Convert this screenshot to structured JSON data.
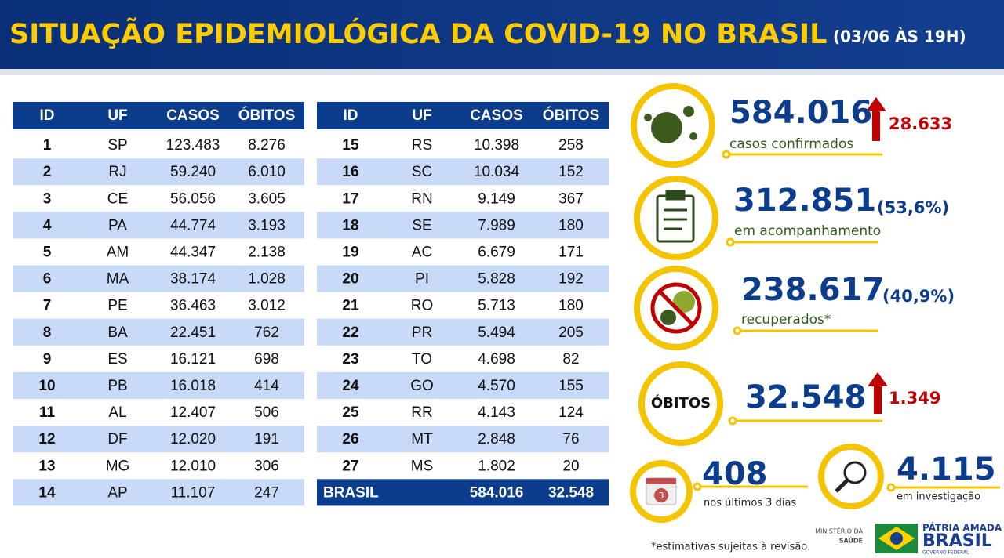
{
  "header": {
    "title": "SITUAÇÃO EPIDEMIOLÓGICA DA COVID-19 NO BRASIL",
    "date": "(03/06 ÀS 19H)"
  },
  "tables": {
    "left": {
      "columns": [
        "ID",
        "UF",
        "CASOS",
        "ÓBITOS"
      ],
      "rows": [
        [
          "1",
          "SP",
          "123.483",
          "8.276"
        ],
        [
          "2",
          "RJ",
          "59.240",
          "6.010"
        ],
        [
          "3",
          "CE",
          "56.056",
          "3.605"
        ],
        [
          "4",
          "PA",
          "44.774",
          "3.193"
        ],
        [
          "5",
          "AM",
          "44.347",
          "2.138"
        ],
        [
          "6",
          "MA",
          "38.174",
          "1.028"
        ],
        [
          "7",
          "PE",
          "36.463",
          "3.012"
        ],
        [
          "8",
          "BA",
          "22.451",
          "762"
        ],
        [
          "9",
          "ES",
          "16.121",
          "698"
        ],
        [
          "10",
          "PB",
          "16.018",
          "414"
        ],
        [
          "11",
          "AL",
          "12.407",
          "506"
        ],
        [
          "12",
          "DF",
          "12.020",
          "191"
        ],
        [
          "13",
          "MG",
          "12.010",
          "306"
        ],
        [
          "14",
          "AP",
          "11.107",
          "247"
        ]
      ]
    },
    "right": {
      "columns": [
        "ID",
        "UF",
        "CASOS",
        "ÓBITOS"
      ],
      "rows": [
        [
          "15",
          "RS",
          "10.398",
          "258"
        ],
        [
          "16",
          "SC",
          "10.034",
          "152"
        ],
        [
          "17",
          "RN",
          "9.149",
          "367"
        ],
        [
          "18",
          "SE",
          "7.989",
          "180"
        ],
        [
          "19",
          "AC",
          "6.679",
          "171"
        ],
        [
          "20",
          "PI",
          "5.828",
          "192"
        ],
        [
          "21",
          "RO",
          "5.713",
          "180"
        ],
        [
          "22",
          "PR",
          "5.494",
          "205"
        ],
        [
          "23",
          "TO",
          "4.698",
          "82"
        ],
        [
          "24",
          "GO",
          "4.570",
          "155"
        ],
        [
          "25",
          "RR",
          "4.143",
          "124"
        ],
        [
          "26",
          "MT",
          "2.848",
          "76"
        ],
        [
          "27",
          "MS",
          "1.802",
          "20"
        ]
      ],
      "total": [
        "BRASIL",
        "584.016",
        "32.548"
      ]
    }
  },
  "stats": {
    "confirmed": {
      "value": "584.016",
      "label": "casos confirmados",
      "increase": "28.633"
    },
    "monitoring": {
      "value": "312.851",
      "share": "(53,6%)",
      "label": "em acompanhamento"
    },
    "recovered": {
      "value": "238.617",
      "share": "(40,9%)",
      "label": "recuperados*"
    },
    "deaths": {
      "badge": "ÓBITOS",
      "value": "32.548",
      "increase": "1.349"
    },
    "last_days": {
      "icon": "3",
      "value": "408",
      "label": "nos últimos 3 dias"
    },
    "investigation": {
      "value": "4.115",
      "label": "em investigação"
    }
  },
  "footer": {
    "note": "*estimativas sujeitas à revisão.",
    "ministry": [
      "MINISTÉRIO DA",
      "SAÚDE"
    ],
    "brand": [
      "PÁTRIA AMADA",
      "BRASIL",
      "GOVERNO FEDERAL"
    ]
  }
}
